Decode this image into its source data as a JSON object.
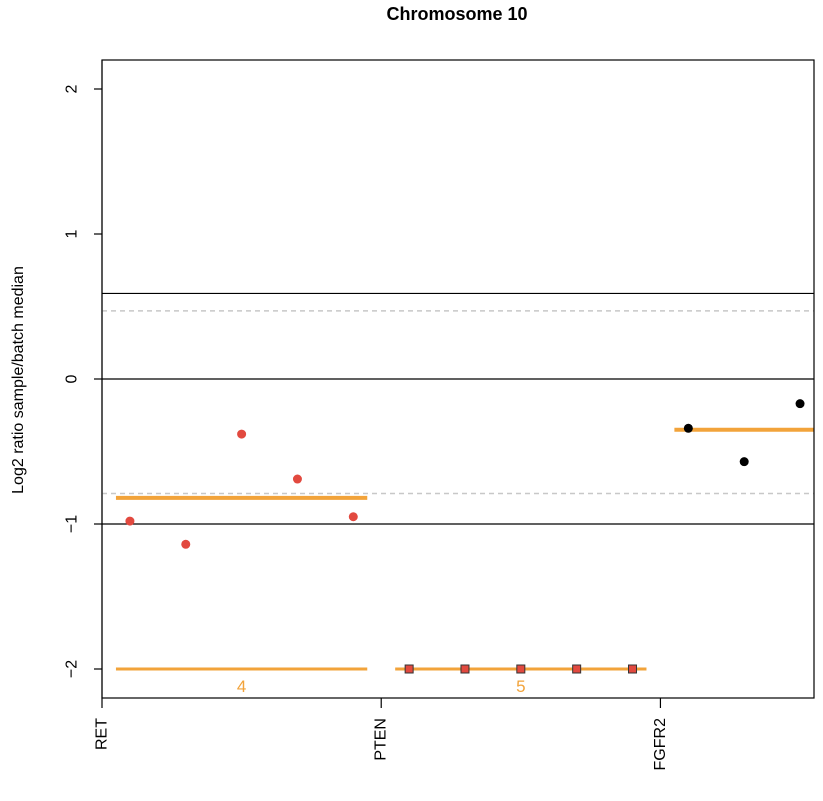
{
  "colors": {
    "segment": "#f2a33a",
    "reference_line": "#000000",
    "threshold_line": "#c8c8c8",
    "marker_line": "#bdbdbd",
    "point_red": "#e2493f",
    "point_black": "#000000",
    "background": "#ffffff"
  },
  "chart_data": {
    "type": "scatter",
    "title": "Chromosome 10",
    "ylabel": "Log2 ratio sample/batch median",
    "xlabel": "",
    "xlim": [
      0.0,
      5.1
    ],
    "ylim": [
      -2.2,
      2.2
    ],
    "grid": false,
    "legend": "none",
    "y_ticks": [
      {
        "value": -2,
        "label": "−2"
      },
      {
        "value": -1,
        "label": "−1"
      },
      {
        "value": 0,
        "label": "0"
      },
      {
        "value": 1,
        "label": "1"
      },
      {
        "value": 2,
        "label": "2"
      }
    ],
    "x_ticks": [
      {
        "value": 0,
        "label": "RET"
      },
      {
        "value": 2,
        "label": "PTEN"
      },
      {
        "value": 4,
        "label": "FGFR2"
      }
    ],
    "vertical_markers": [
      0
    ],
    "reference_lines": [
      0.59,
      0,
      -1
    ],
    "threshold_lines": [
      0.47,
      -0.79
    ],
    "segments": [
      {
        "x0": 0.1,
        "x1": 1.9,
        "y": -0.82,
        "style": "thick"
      },
      {
        "x0": 0.1,
        "x1": 1.9,
        "y": -2.0,
        "style": "thin",
        "label": "4",
        "label_x": 1.0
      },
      {
        "x0": 2.1,
        "x1": 3.9,
        "y": -2.0,
        "style": "thin",
        "label": "5",
        "label_x": 3.0
      },
      {
        "x0": 4.1,
        "x1": 5.1,
        "y": -0.35,
        "style": "thick"
      }
    ],
    "series": [
      {
        "marker": "circle",
        "color": "#e2493f",
        "x": [
          0.2,
          0.6,
          1.0,
          1.4,
          1.8
        ],
        "y": [
          -0.98,
          -1.14,
          -0.38,
          -0.69,
          -0.95
        ]
      },
      {
        "marker": "square",
        "color": "#e2493f",
        "x": [
          2.2,
          2.6,
          3.0,
          3.4,
          3.8
        ],
        "y": [
          -2.0,
          -2.0,
          -2.0,
          -2.0,
          -2.0
        ]
      },
      {
        "marker": "circle",
        "color": "#000000",
        "x": [
          4.2,
          4.6,
          5.0
        ],
        "y": [
          -0.34,
          -0.57,
          -0.17
        ]
      }
    ]
  }
}
